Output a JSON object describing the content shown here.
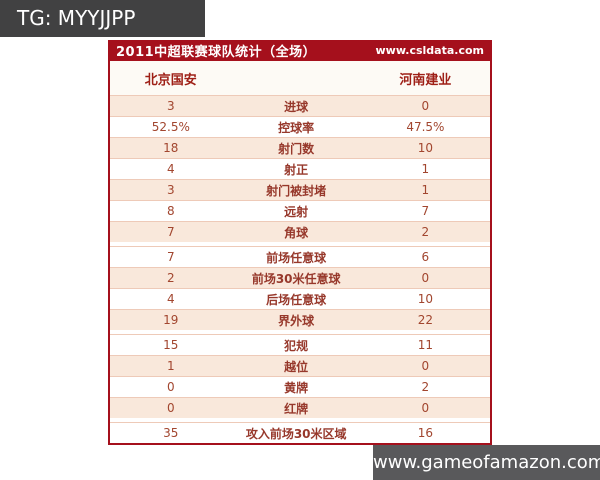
{
  "watermark_top": {
    "text": "TG: MYYJJPP",
    "bg": "#414142",
    "color": "#ffffff"
  },
  "watermark_bottom": {
    "text": "www.gameofamazon.com",
    "bg": "#59595b",
    "color": "#ffffff"
  },
  "colors": {
    "header_red": "#a5101c",
    "border_red": "#a5101c",
    "row_pink": "#f9e8db",
    "row_white": "#ffffff",
    "text_red": "#9c3a2c"
  },
  "table": {
    "title": "2011中超联赛球队统计（全场）",
    "site": "www.csldata.com",
    "home_team": "北京国安",
    "away_team": "河南建业",
    "rows": [
      {
        "home": "3",
        "label": "进球",
        "away": "0"
      },
      {
        "home": "52.5%",
        "label": "控球率",
        "away": "47.5%"
      },
      {
        "home": "18",
        "label": "射门数",
        "away": "10"
      },
      {
        "home": "4",
        "label": "射正",
        "away": "1"
      },
      {
        "home": "3",
        "label": "射门被封堵",
        "away": "1"
      },
      {
        "home": "8",
        "label": "远射",
        "away": "7"
      },
      {
        "home": "7",
        "label": "角球",
        "away": "2"
      },
      {
        "home": "7",
        "label": "前场任意球",
        "away": "6"
      },
      {
        "home": "2",
        "label": "前场30米任意球",
        "away": "0"
      },
      {
        "home": "4",
        "label": "后场任意球",
        "away": "10"
      },
      {
        "home": "19",
        "label": "界外球",
        "away": "22"
      },
      {
        "home": "15",
        "label": "犯规",
        "away": "11"
      },
      {
        "home": "1",
        "label": "越位",
        "away": "0"
      },
      {
        "home": "0",
        "label": "黄牌",
        "away": "2"
      },
      {
        "home": "0",
        "label": "红牌",
        "away": "0"
      },
      {
        "home": "35",
        "label": "攻入前场30米区域",
        "away": "16"
      }
    ]
  }
}
